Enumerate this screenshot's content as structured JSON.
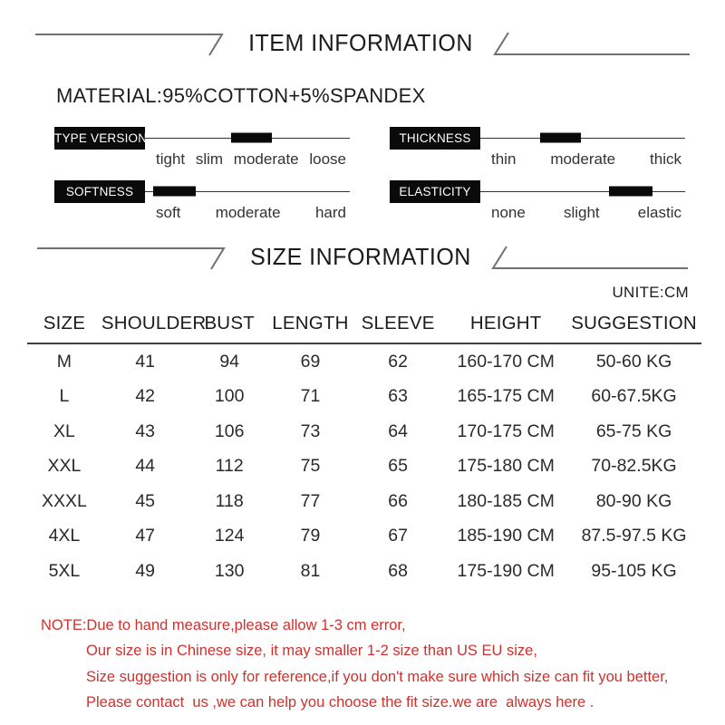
{
  "item_section": {
    "title": "ITEM INFORMATION"
  },
  "material": "MATERIAL:95%COTTON+5%SPANDEX",
  "attributes": [
    {
      "label": "TYPE VERSION",
      "options": [
        "tight",
        "slim",
        "moderate",
        "loose"
      ],
      "selected": "moderate",
      "indicator_left_pct": 42,
      "indicator_width_pct": 20
    },
    {
      "label": "THICKNESS",
      "options": [
        "thin",
        "moderate",
        "thick"
      ],
      "selected": "moderate",
      "indicator_left_pct": 29,
      "indicator_width_pct": 20
    },
    {
      "label": "SOFTNESS",
      "options": [
        "soft",
        "moderate",
        "hard"
      ],
      "selected": "soft",
      "indicator_left_pct": 4,
      "indicator_width_pct": 21
    },
    {
      "label": "ELASTICITY",
      "options": [
        "none",
        "slight",
        "elastic"
      ],
      "selected": "elastic",
      "indicator_left_pct": 63,
      "indicator_width_pct": 21
    }
  ],
  "size_section": {
    "title": "SIZE INFORMATION",
    "unit": "UNITE:CM"
  },
  "size_table": {
    "columns": [
      "SIZE",
      "SHOULDER",
      "BUST",
      "LENGTH",
      "SLEEVE",
      "HEIGHT",
      "SUGGESTION"
    ],
    "rows": [
      [
        "M",
        "41",
        "94",
        "69",
        "62",
        "160-170 CM",
        "50-60 KG"
      ],
      [
        "L",
        "42",
        "100",
        "71",
        "63",
        "165-175 CM",
        "60-67.5KG"
      ],
      [
        "XL",
        "43",
        "106",
        "73",
        "64",
        "170-175 CM",
        "65-75 KG"
      ],
      [
        "XXL",
        "44",
        "112",
        "75",
        "65",
        "175-180 CM",
        "70-82.5KG"
      ],
      [
        "XXXL",
        "45",
        "118",
        "77",
        "66",
        "180-185 CM",
        "80-90 KG"
      ],
      [
        "4XL",
        "47",
        "124",
        "79",
        "67",
        "185-190 CM",
        "87.5-97.5 KG"
      ],
      [
        "5XL",
        "49",
        "130",
        "81",
        "68",
        "175-190 CM",
        "95-105 KG"
      ]
    ]
  },
  "note": {
    "color": "#d2302c",
    "lines": [
      "NOTE:Due to hand measure,please allow 1-3 cm error,",
      "Our size is in Chinese size, it may smaller 1-2 size than US EU size,",
      "Size suggestion is only for reference,if you don't make sure which size can fit you better,",
      "Please contact  us ,we can help you choose the fit size.we are  always here ."
    ]
  },
  "colors": {
    "label_bg": "#0a0a0a",
    "label_text": "#ffffff",
    "track_line": "#333333",
    "decor_line": "#707070"
  }
}
